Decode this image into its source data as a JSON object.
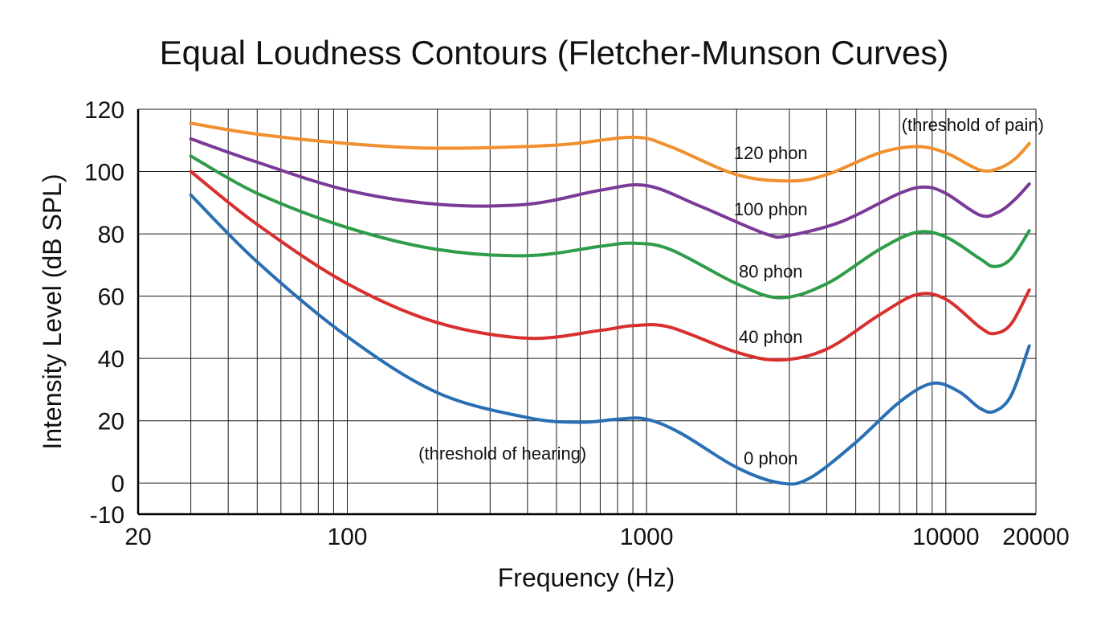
{
  "chart_data": {
    "type": "line",
    "title": "Equal Loudness Contours (Fletcher-Munson Curves)",
    "xlabel": "Frequency (Hz)",
    "ylabel": "Intensity Level (dB SPL)",
    "x_scale": "log",
    "xlim": [
      20,
      20000
    ],
    "ylim": [
      -10,
      120
    ],
    "x_ticks": [
      {
        "value": 20,
        "label": "20"
      },
      {
        "value": 100,
        "label": "100"
      },
      {
        "value": 1000,
        "label": "1000"
      },
      {
        "value": 10000,
        "label": "10000"
      },
      {
        "value": 20000,
        "label": "20000"
      }
    ],
    "y_ticks": [
      {
        "value": -10,
        "label": "-10"
      },
      {
        "value": 0,
        "label": "0"
      },
      {
        "value": 20,
        "label": "20"
      },
      {
        "value": 40,
        "label": "40"
      },
      {
        "value": 60,
        "label": "60"
      },
      {
        "value": 80,
        "label": "80"
      },
      {
        "value": 100,
        "label": "100"
      },
      {
        "value": 120,
        "label": "120"
      }
    ],
    "grid": true,
    "legend": "none",
    "x_grid_values": [
      30,
      40,
      50,
      60,
      70,
      80,
      90,
      100,
      200,
      300,
      400,
      500,
      600,
      700,
      800,
      900,
      1000,
      2000,
      3000,
      4000,
      5000,
      6000,
      7000,
      8000,
      9000,
      10000,
      20000
    ],
    "y_grid_values": [
      0,
      20,
      40,
      60,
      80,
      100
    ],
    "series": [
      {
        "label": "120 phon",
        "color": "#f0902e",
        "label_at": {
          "x": 2600,
          "y": 104
        },
        "points": [
          [
            30,
            115.5
          ],
          [
            50,
            112
          ],
          [
            100,
            109
          ],
          [
            200,
            107.5
          ],
          [
            500,
            108.5
          ],
          [
            900,
            111
          ],
          [
            1200,
            108
          ],
          [
            2000,
            99
          ],
          [
            3000,
            97
          ],
          [
            4000,
            99
          ],
          [
            6000,
            106
          ],
          [
            8000,
            108
          ],
          [
            10000,
            106
          ],
          [
            13000,
            100.5
          ],
          [
            15000,
            101
          ],
          [
            17000,
            104
          ],
          [
            19000,
            109
          ]
        ]
      },
      {
        "label": "100 phon",
        "color": "#7b3a98",
        "label_at": {
          "x": 2600,
          "y": 86
        },
        "points": [
          [
            30,
            110.5
          ],
          [
            50,
            103
          ],
          [
            100,
            94
          ],
          [
            200,
            89.5
          ],
          [
            400,
            89.5
          ],
          [
            700,
            94
          ],
          [
            1000,
            95.5
          ],
          [
            1500,
            89
          ],
          [
            2500,
            80
          ],
          [
            3000,
            79.5
          ],
          [
            4500,
            84
          ],
          [
            7000,
            93
          ],
          [
            8500,
            95
          ],
          [
            10000,
            93
          ],
          [
            13000,
            86
          ],
          [
            15000,
            87
          ],
          [
            17000,
            91
          ],
          [
            19000,
            96
          ]
        ]
      },
      {
        "label": "80 phon",
        "color": "#2e9c48",
        "label_at": {
          "x": 2600,
          "y": 66
        },
        "points": [
          [
            30,
            105
          ],
          [
            50,
            93
          ],
          [
            100,
            82
          ],
          [
            200,
            75
          ],
          [
            400,
            73
          ],
          [
            700,
            76
          ],
          [
            900,
            77
          ],
          [
            1200,
            75
          ],
          [
            2000,
            64
          ],
          [
            2800,
            59.5
          ],
          [
            4000,
            64
          ],
          [
            6000,
            75
          ],
          [
            8000,
            80.5
          ],
          [
            10000,
            79
          ],
          [
            13000,
            72
          ],
          [
            14500,
            69.5
          ],
          [
            16500,
            72
          ],
          [
            19000,
            81
          ]
        ]
      },
      {
        "label": "40 phon",
        "color": "#d82f2f",
        "label_at": {
          "x": 2600,
          "y": 45
        },
        "points": [
          [
            30,
            100
          ],
          [
            50,
            83
          ],
          [
            100,
            64
          ],
          [
            200,
            51.5
          ],
          [
            400,
            46.5
          ],
          [
            700,
            49
          ],
          [
            900,
            50.5
          ],
          [
            1200,
            50
          ],
          [
            2000,
            42
          ],
          [
            2800,
            39.5
          ],
          [
            4000,
            43
          ],
          [
            6000,
            54
          ],
          [
            8000,
            60.5
          ],
          [
            10000,
            59
          ],
          [
            13000,
            50
          ],
          [
            14500,
            48
          ],
          [
            16500,
            51
          ],
          [
            19000,
            62
          ]
        ]
      },
      {
        "label": "0 phon",
        "color": "#2a6fb4",
        "label_at": {
          "x": 2600,
          "y": 6
        },
        "points": [
          [
            30,
            92.5
          ],
          [
            50,
            71
          ],
          [
            100,
            47
          ],
          [
            200,
            29
          ],
          [
            400,
            21
          ],
          [
            600,
            19.5
          ],
          [
            800,
            20.5
          ],
          [
            1000,
            20.5
          ],
          [
            1300,
            16
          ],
          [
            2000,
            5
          ],
          [
            2800,
            0
          ],
          [
            3500,
            1.5
          ],
          [
            5000,
            13
          ],
          [
            7000,
            26
          ],
          [
            9000,
            32
          ],
          [
            11000,
            29.5
          ],
          [
            13000,
            24
          ],
          [
            14500,
            23
          ],
          [
            16500,
            28
          ],
          [
            19000,
            44
          ]
        ]
      }
    ],
    "annotations": [
      {
        "text": "(threshold of pain)",
        "x": 12300,
        "y": 113,
        "anchor": "middle"
      },
      {
        "text": "(threshold of hearing)",
        "x": 330,
        "y": 7.5,
        "anchor": "middle"
      }
    ]
  }
}
